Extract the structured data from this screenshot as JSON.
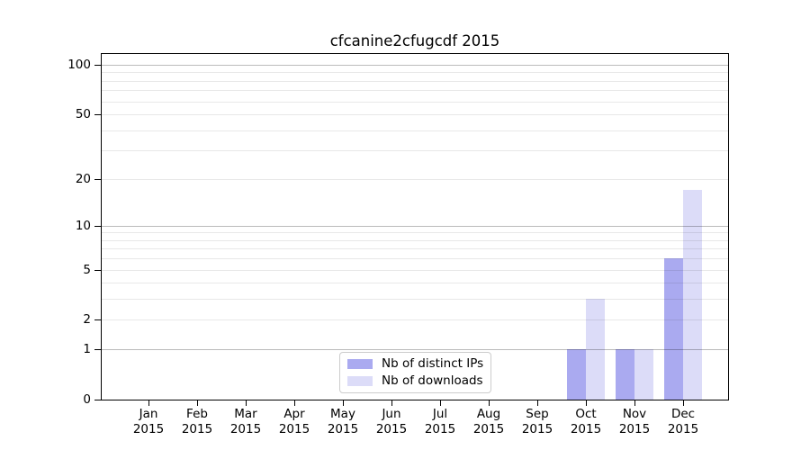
{
  "chart_data": {
    "type": "bar",
    "title": "cfcanine2cfugcdf 2015",
    "year_label": "2015",
    "categories": [
      "Jan",
      "Feb",
      "Mar",
      "Apr",
      "May",
      "Jun",
      "Jul",
      "Aug",
      "Sep",
      "Oct",
      "Nov",
      "Dec"
    ],
    "series": [
      {
        "name": "Nb of distinct IPs",
        "color": "#aaaaf0",
        "values": [
          0,
          0,
          0,
          0,
          0,
          0,
          0,
          0,
          0,
          1,
          1,
          6
        ]
      },
      {
        "name": "Nb of downloads",
        "color": "#dcdcf8",
        "values": [
          0,
          0,
          0,
          0,
          0,
          0,
          0,
          0,
          0,
          3,
          1,
          17
        ]
      }
    ],
    "yscale": "log1p",
    "ylim": [
      0,
      116
    ],
    "yticks": [
      0,
      1,
      2,
      5,
      10,
      20,
      50,
      100
    ],
    "grid_major": [
      1,
      10,
      100
    ],
    "grid_minor": [
      2,
      3,
      4,
      5,
      6,
      7,
      8,
      9,
      20,
      30,
      40,
      50,
      60,
      70,
      80,
      90
    ],
    "legend_position": "lower center",
    "colors": {
      "grid_major": "#bbbbbb",
      "grid_minor": "#e8e8e8",
      "spine": "#000000",
      "legend_border": "#cccccc",
      "background": "#ffffff"
    }
  }
}
